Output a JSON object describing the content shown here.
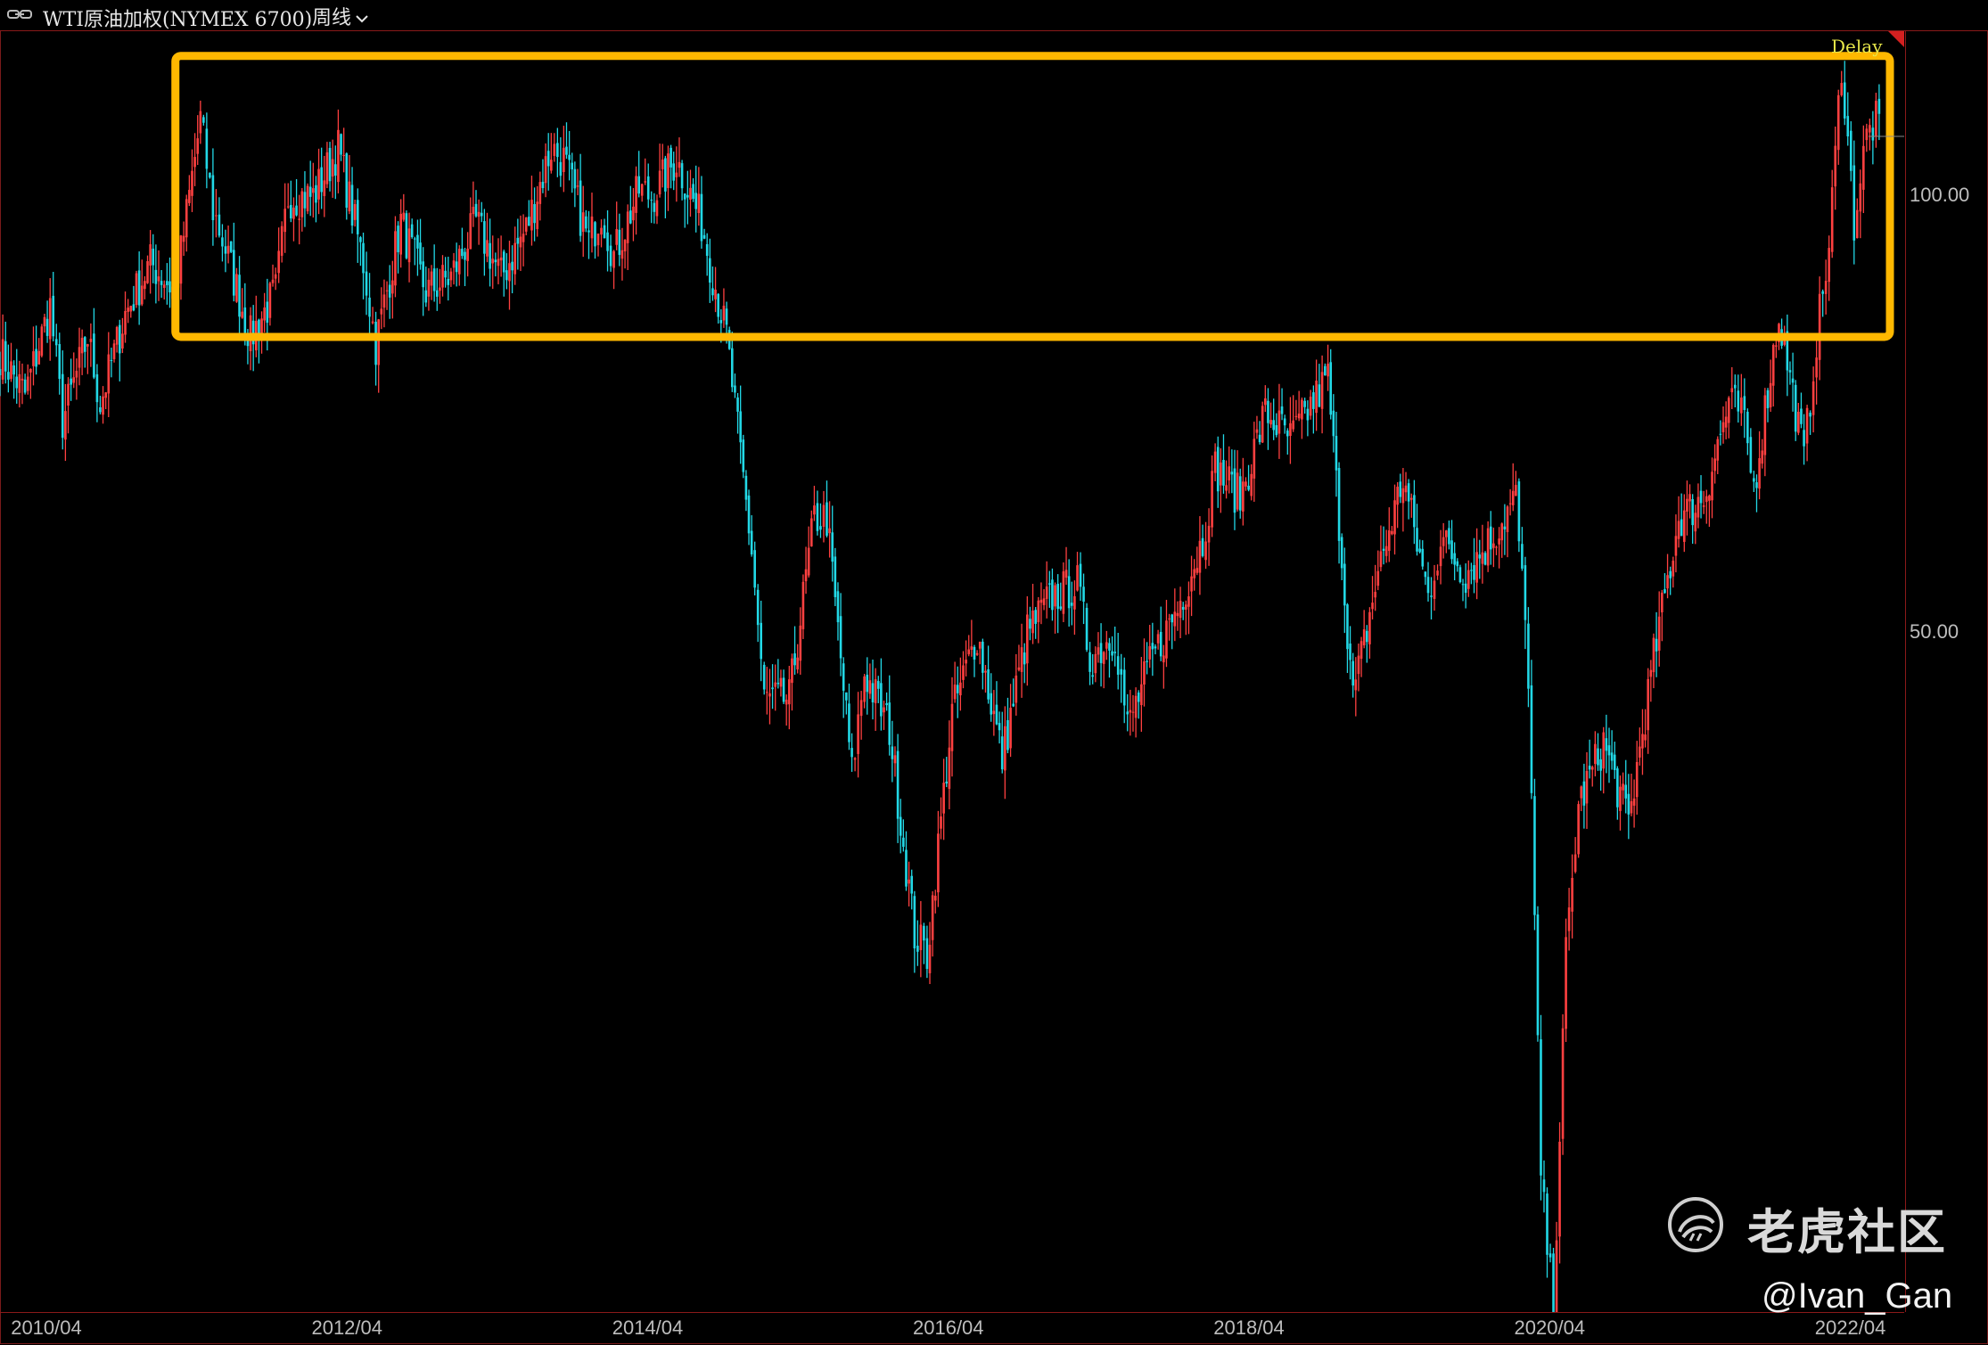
{
  "header": {
    "title": "WTI原油加权(NYMEX 6700)",
    "period": "周线",
    "link_icon": "link-icon",
    "dropdown_icon": "chevron-down-icon"
  },
  "status": {
    "delay_label": "Delay"
  },
  "watermark": {
    "text": "老虎社区",
    "logo_icon": "tiger-logo-icon",
    "author": "@Ivan_Gan"
  },
  "colors": {
    "up": "#ff4040",
    "down": "#22d8e6",
    "highlight": "#ffb800",
    "border": "#8b1a1a",
    "delay": "#e8e84a"
  },
  "chart_data": {
    "type": "candlestick-weekly",
    "instrument": "WTI原油加权(NYMEX 6700)",
    "interval": "周线",
    "x_ticks": [
      "2010/04",
      "2012/04",
      "2014/04",
      "2016/04",
      "2018/04",
      "2020/04",
      "2022/04"
    ],
    "y_ticks": [
      {
        "value": 100,
        "label": "100.00"
      },
      {
        "value": 50,
        "label": "50.00"
      }
    ],
    "y_scale": "log",
    "ylim": [
      17,
      130
    ],
    "xlim": [
      "2009/12",
      "2022/08"
    ],
    "last_price_marker": 110,
    "highlight_box": {
      "x_from": "2011/02",
      "x_to": "2022/08",
      "y_from": 80,
      "y_to": 125
    },
    "price_path": [
      [
        "2009/12",
        78
      ],
      [
        "2010/02",
        73
      ],
      [
        "2010/04",
        84
      ],
      [
        "2010/05",
        70
      ],
      [
        "2010/07",
        80
      ],
      [
        "2010/08",
        72
      ],
      [
        "2010/10",
        83
      ],
      [
        "2010/12",
        90
      ],
      [
        "2011/02",
        86
      ],
      [
        "2011/04",
        113
      ],
      [
        "2011/05",
        98
      ],
      [
        "2011/06",
        92
      ],
      [
        "2011/08",
        80
      ],
      [
        "2011/10",
        86
      ],
      [
        "2011/11",
        100
      ],
      [
        "2012/01",
        100
      ],
      [
        "2012/03",
        108
      ],
      [
        "2012/05",
        90
      ],
      [
        "2012/06",
        79
      ],
      [
        "2012/08",
        96
      ],
      [
        "2012/10",
        86
      ],
      [
        "2012/12",
        88
      ],
      [
        "2013/02",
        96
      ],
      [
        "2013/04",
        88
      ],
      [
        "2013/06",
        95
      ],
      [
        "2013/08",
        108
      ],
      [
        "2013/09",
        106
      ],
      [
        "2013/11",
        93
      ],
      [
        "2013/12",
        98
      ],
      [
        "2014/01",
        91
      ],
      [
        "2014/03",
        101
      ],
      [
        "2014/04",
        100
      ],
      [
        "2014/06",
        106
      ],
      [
        "2014/08",
        96
      ],
      [
        "2014/10",
        80
      ],
      [
        "2014/12",
        57
      ],
      [
        "2015/01",
        45
      ],
      [
        "2015/03",
        45
      ],
      [
        "2015/05",
        60
      ],
      [
        "2015/06",
        60
      ],
      [
        "2015/08",
        40
      ],
      [
        "2015/09",
        47
      ],
      [
        "2015/11",
        43
      ],
      [
        "2016/01",
        31
      ],
      [
        "2016/02",
        30
      ],
      [
        "2016/04",
        44
      ],
      [
        "2016/06",
        50
      ],
      [
        "2016/08",
        41
      ],
      [
        "2016/10",
        50
      ],
      [
        "2016/12",
        53
      ],
      [
        "2017/02",
        54
      ],
      [
        "2017/03",
        48
      ],
      [
        "2017/05",
        50
      ],
      [
        "2017/06",
        43
      ],
      [
        "2017/08",
        48
      ],
      [
        "2017/10",
        52
      ],
      [
        "2017/12",
        58
      ],
      [
        "2018/01",
        65
      ],
      [
        "2018/03",
        62
      ],
      [
        "2018/05",
        71
      ],
      [
        "2018/07",
        68
      ],
      [
        "2018/10",
        75
      ],
      [
        "2018/12",
        45
      ],
      [
        "2019/02",
        55
      ],
      [
        "2019/04",
        64
      ],
      [
        "2019/06",
        53
      ],
      [
        "2019/07",
        58
      ],
      [
        "2019/09",
        55
      ],
      [
        "2019/11",
        58
      ],
      [
        "2020/01",
        62
      ],
      [
        "2020/02",
        47
      ],
      [
        "2020/03",
        21
      ],
      [
        "2020/04",
        17
      ],
      [
        "2020/05",
        30
      ],
      [
        "2020/06",
        38
      ],
      [
        "2020/08",
        42
      ],
      [
        "2020/10",
        37
      ],
      [
        "2020/12",
        48
      ],
      [
        "2021/02",
        60
      ],
      [
        "2021/04",
        62
      ],
      [
        "2021/06",
        72
      ],
      [
        "2021/07",
        71
      ],
      [
        "2021/08",
        63
      ],
      [
        "2021/10",
        83
      ],
      [
        "2021/12",
        66
      ],
      [
        "2022/01",
        80
      ],
      [
        "2022/02",
        92
      ],
      [
        "2022/03",
        124
      ],
      [
        "2022/04",
        96
      ],
      [
        "2022/05",
        110
      ],
      [
        "2022/06",
        114
      ]
    ]
  }
}
